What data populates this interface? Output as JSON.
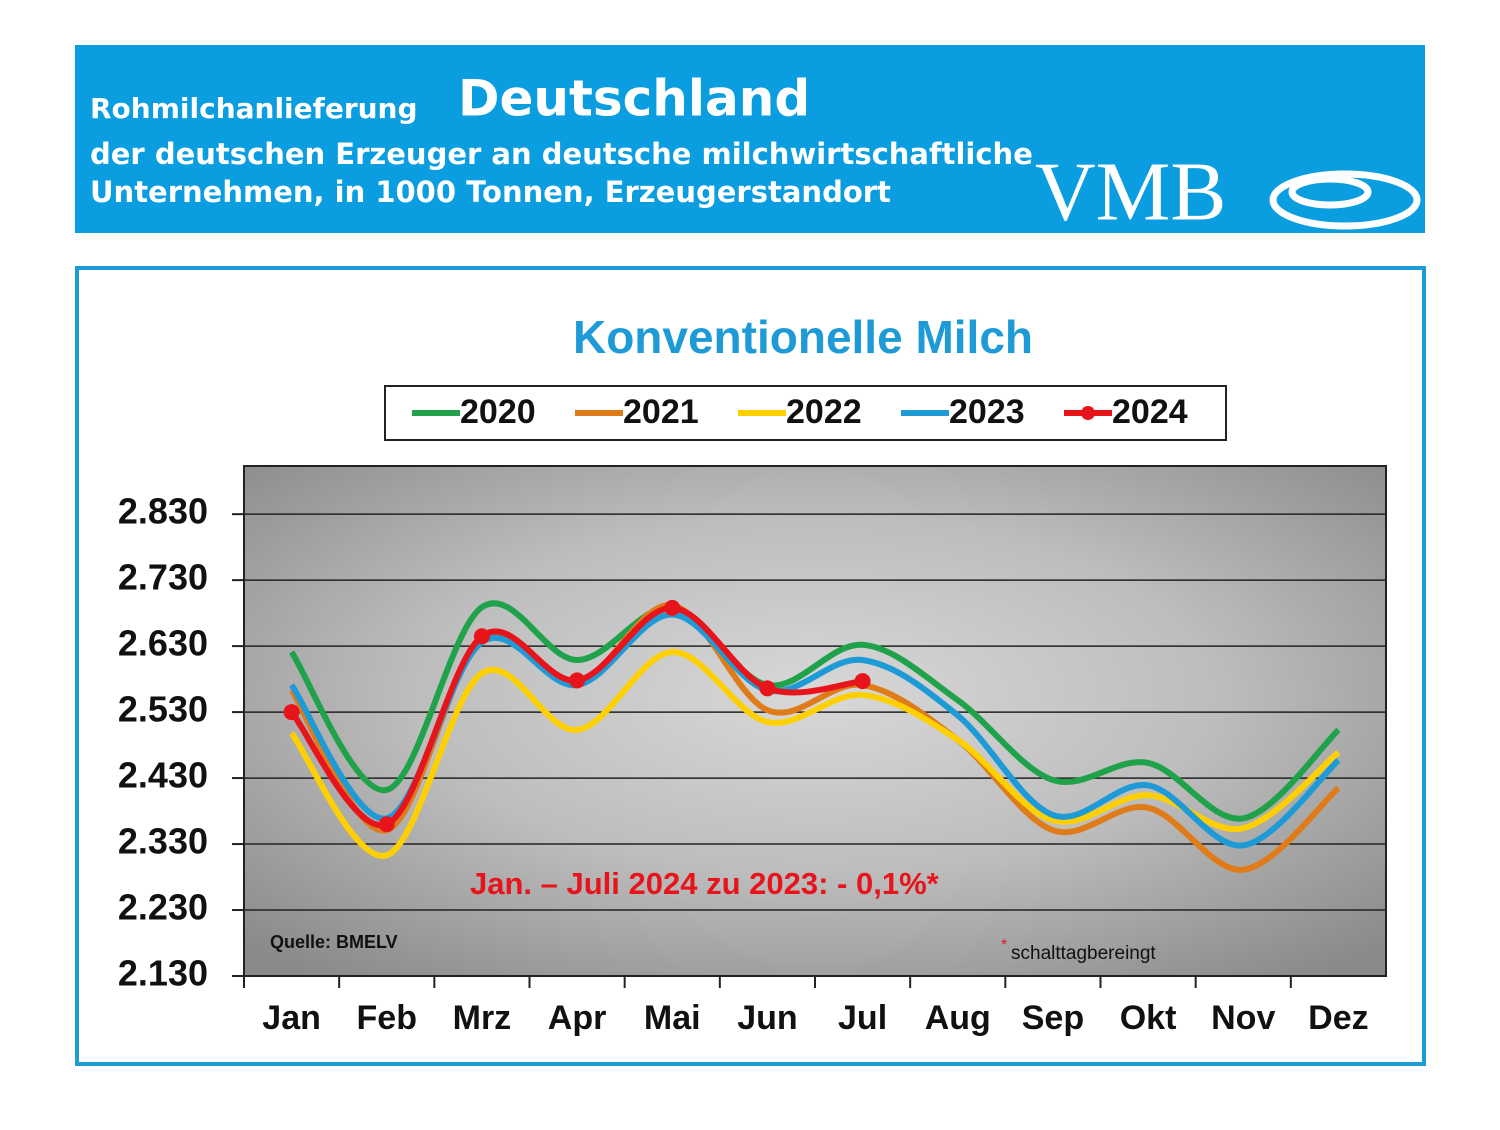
{
  "header": {
    "line1": "Rohmilchanlieferung",
    "title": "Deutschland",
    "line2": "der deutschen Erzeuger an deutsche milchwirtschaftliche",
    "line3": "Unternehmen, in 1000 Tonnen, Erzeugerstandort",
    "logo": "VMB"
  },
  "chart_data": {
    "type": "line",
    "title": "Konventionelle Milch",
    "categories": [
      "Jan",
      "Feb",
      "Mrz",
      "Apr",
      "Mai",
      "Jun",
      "Jul",
      "Aug",
      "Sep",
      "Okt",
      "Nov",
      "Dez"
    ],
    "series": [
      {
        "name": "2020",
        "color": "#1fa24a",
        "values": [
          2621,
          2412,
          2689,
          2609,
          2688,
          2571,
          2632,
          2548,
          2427,
          2453,
          2369,
          2503
        ]
      },
      {
        "name": "2021",
        "color": "#e07b1a",
        "values": [
          2563,
          2351,
          2642,
          2575,
          2692,
          2533,
          2571,
          2488,
          2351,
          2385,
          2291,
          2415
        ]
      },
      {
        "name": "2022",
        "color": "#ffd000",
        "values": [
          2498,
          2313,
          2589,
          2503,
          2621,
          2515,
          2556,
          2488,
          2366,
          2404,
          2354,
          2469
        ]
      },
      {
        "name": "2023",
        "color": "#1e9ad6",
        "values": [
          2571,
          2369,
          2636,
          2571,
          2678,
          2563,
          2609,
          2525,
          2374,
          2419,
          2328,
          2457
        ]
      },
      {
        "name": "2024",
        "color": "#e8141c",
        "markers": true,
        "values": [
          2530,
          2360,
          2645,
          2578,
          2688,
          2566,
          2577,
          null,
          null,
          null,
          null,
          null
        ]
      }
    ],
    "ylim": [
      2130,
      2903
    ],
    "yticks": [
      {
        "value": 2130,
        "label": "2.130"
      },
      {
        "value": 2230,
        "label": "2.230"
      },
      {
        "value": 2330,
        "label": "2.330"
      },
      {
        "value": 2430,
        "label": "2.430"
      },
      {
        "value": 2530,
        "label": "2.530"
      },
      {
        "value": 2630,
        "label": "2.630"
      },
      {
        "value": 2730,
        "label": "2.730"
      },
      {
        "value": 2830,
        "label": "2.830"
      }
    ],
    "grid": true,
    "legend": "top",
    "annotation": "Jan. – Juli 2024 zu 2023: - 0,1%*",
    "source": "Quelle:  BMELV",
    "note_marker": "*",
    "note": "schalttagbereingt"
  }
}
